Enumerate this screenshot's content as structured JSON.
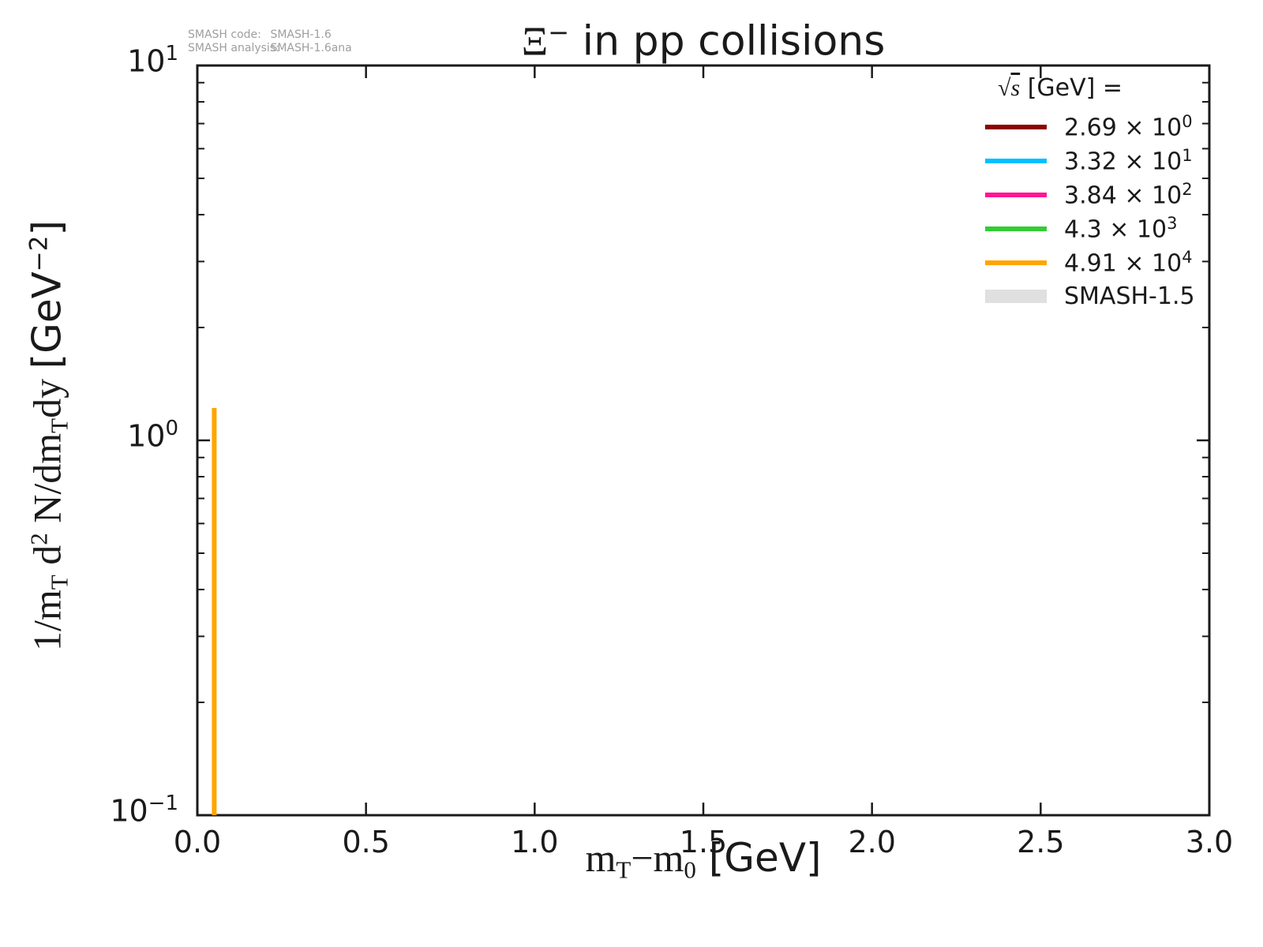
{
  "title_parts": [
    {
      "text": "Ξ",
      "style": "serif"
    },
    {
      "text": "−",
      "style": "sup-sans"
    },
    {
      "text": " in pp collisions",
      "style": "sans"
    }
  ],
  "watermark": {
    "rows": [
      {
        "label": "SMASH code:",
        "value": "SMASH-1.6"
      },
      {
        "label": "SMASH analysis:",
        "value": "SMASH-1.6ana"
      }
    ]
  },
  "axes": {
    "xlabel_parts": [
      {
        "text": "m",
        "style": "serif"
      },
      {
        "text": "T",
        "style": "sub"
      },
      {
        "text": "−m",
        "style": "serif"
      },
      {
        "text": "0",
        "style": "sub"
      },
      {
        "text": " [GeV]",
        "style": "sans"
      }
    ],
    "ylabel_parts": [
      {
        "text": "1/m",
        "style": "serif"
      },
      {
        "text": "T",
        "style": "sub"
      },
      {
        "text": " d",
        "style": "serif"
      },
      {
        "text": "2",
        "style": "sup"
      },
      {
        "text": " N/dm",
        "style": "serif"
      },
      {
        "text": "T",
        "style": "sub"
      },
      {
        "text": "dy ",
        "style": "serif"
      },
      {
        "text": " [GeV",
        "style": "sans"
      },
      {
        "text": "−2",
        "style": "sup-sans"
      },
      {
        "text": "]",
        "style": "sans"
      }
    ]
  },
  "legend": {
    "header_parts": [
      {
        "text": "√",
        "style": "serif"
      },
      {
        "text": "s",
        "style": "serif-overline"
      },
      {
        "text": "  [GeV] =",
        "style": "sans"
      }
    ],
    "entries": [
      {
        "series": 0,
        "base": "2.69 × 10",
        "exp": "0",
        "swatch": "line"
      },
      {
        "series": 1,
        "base": "3.32 × 10",
        "exp": "1",
        "swatch": "line"
      },
      {
        "series": 2,
        "base": "3.84 × 10",
        "exp": "2",
        "swatch": "line"
      },
      {
        "series": 3,
        "base": "4.3 × 10",
        "exp": "3",
        "swatch": "line"
      },
      {
        "series": 4,
        "base": "4.91 × 10",
        "exp": "4",
        "swatch": "line"
      },
      {
        "series": 5,
        "base": "SMASH-1.5",
        "exp": "",
        "swatch": "band"
      }
    ]
  },
  "chart_data": {
    "type": "line",
    "title": "Ξ⁻ in pp collisions",
    "xlabel": "mT−m0 [GeV]",
    "ylabel": "1/mT d²N/dmTdy [GeV⁻²]",
    "xlim": [
      0.0,
      3.0
    ],
    "ylim": [
      0.1,
      10
    ],
    "yscale": "log",
    "grid": false,
    "legend_position": "upper right",
    "x_ticks": [
      0.0,
      0.5,
      1.0,
      1.5,
      2.0,
      2.5,
      3.0
    ],
    "x_tick_labels": [
      "0.0",
      "0.5",
      "1.0",
      "1.5",
      "2.0",
      "2.5",
      "3.0"
    ],
    "y_tick_exponents": [
      -1,
      0,
      1
    ],
    "frame_color": "#1a1a1a",
    "series": [
      {
        "name": "sqrt(s) = 2.69 × 10^0 GeV",
        "color": "#8b0000",
        "points": []
      },
      {
        "name": "sqrt(s) = 3.32 × 10^1 GeV",
        "color": "#00bfff",
        "points": []
      },
      {
        "name": "sqrt(s) = 3.84 × 10^2 GeV",
        "color": "#ff1493",
        "points": []
      },
      {
        "name": "sqrt(s) = 4.3 × 10^3 GeV",
        "color": "#32cd32",
        "points": []
      },
      {
        "name": "sqrt(s) = 4.91 × 10^4 GeV",
        "color": "#ffa500",
        "shape": "vertical-spike",
        "points": [
          [
            0.05,
            1.22
          ],
          [
            0.05,
            0.1
          ]
        ],
        "linewidth": 6
      },
      {
        "name": "SMASH-1.5",
        "color": "#e0e0e0",
        "shape": "band",
        "points": []
      }
    ]
  }
}
